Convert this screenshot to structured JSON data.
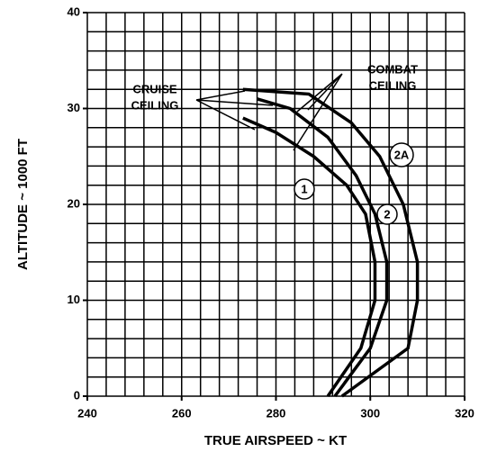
{
  "chart_data": {
    "type": "line",
    "xlabel": "TRUE AIRSPEED ~ KT",
    "ylabel": "ALTITUDE ~ 1000 FT",
    "xlim": [
      240,
      320
    ],
    "ylim": [
      0,
      40
    ],
    "xticks": [
      240,
      260,
      280,
      300,
      320
    ],
    "yticks": [
      0,
      10,
      20,
      30,
      40
    ],
    "grid": true,
    "xgrid": [
      240,
      244,
      248,
      252,
      256,
      260,
      264,
      268,
      272,
      276,
      280,
      284,
      288,
      292,
      296,
      300,
      304,
      308,
      312,
      316,
      320
    ],
    "ygrid": [
      0,
      2,
      4,
      6,
      8,
      10,
      12,
      14,
      16,
      18,
      20,
      22,
      24,
      26,
      28,
      30,
      32,
      34,
      36,
      38,
      40
    ],
    "annotations": [
      [
        "CRUISE",
        "CEILING"
      ],
      [
        "COMBAT",
        "CEILING"
      ]
    ],
    "series": [
      {
        "name": "1",
        "color": "#000000",
        "x": [
          291,
          298,
          301,
          301,
          299,
          295,
          288,
          280,
          273
        ],
        "values": [
          0,
          5,
          10,
          14,
          19,
          22,
          25,
          27.5,
          29
        ]
      },
      {
        "name": "2",
        "color": "#000000",
        "x": [
          292.5,
          300,
          303.5,
          303.5,
          301,
          297,
          291,
          283,
          276
        ],
        "values": [
          0,
          5,
          10,
          14,
          19,
          23,
          27,
          30,
          31
        ]
      },
      {
        "name": "2A",
        "color": "#000000",
        "x": [
          294,
          308,
          310,
          310,
          307,
          302,
          296,
          287,
          273
        ],
        "values": [
          0,
          5,
          10,
          14,
          20,
          25,
          28.5,
          31.5,
          32
        ]
      }
    ]
  }
}
